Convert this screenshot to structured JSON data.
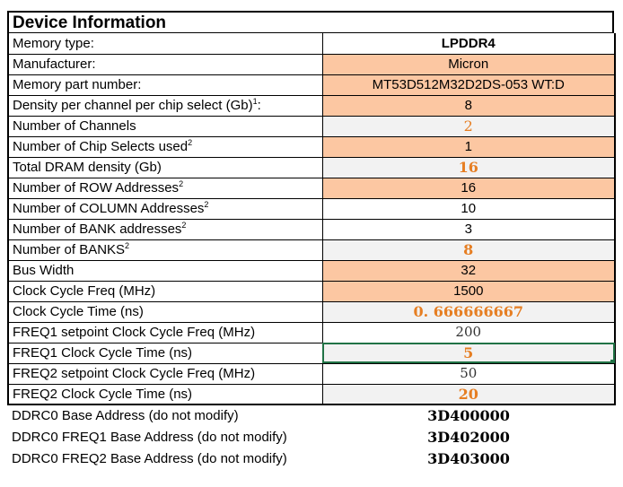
{
  "title": "Device Information",
  "rows": [
    {
      "label": "Memory type:",
      "sup": "",
      "value": "LPDDR4"
    },
    {
      "label": "Manufacturer:",
      "sup": "",
      "value": "Micron"
    },
    {
      "label": "Memory part number:",
      "sup": "",
      "value": "MT53D512M32D2DS-053 WT:D"
    },
    {
      "label": "Density per channel per chip select (Gb)",
      "sup": "1",
      "suffix": ":",
      "value": "8"
    },
    {
      "label": "Number of Channels",
      "sup": "",
      "value": "2"
    },
    {
      "label": "Number of Chip Selects used",
      "sup": "2",
      "value": "1"
    },
    {
      "label": "Total DRAM density (Gb)",
      "sup": "",
      "value": "16"
    },
    {
      "label": "Number of ROW Addresses",
      "sup": "2",
      "value": "16"
    },
    {
      "label": "Number of COLUMN Addresses",
      "sup": "2",
      "value": "10"
    },
    {
      "label": "Number of BANK addresses",
      "sup": "2",
      "value": "3"
    },
    {
      "label": "Number of BANKS",
      "sup": "2",
      "value": "8"
    },
    {
      "label": "Bus Width",
      "sup": "",
      "value": "32"
    },
    {
      "label": "Clock Cycle Freq (MHz)",
      "sup": "",
      "value": "1500"
    },
    {
      "label": "Clock Cycle Time (ns)",
      "sup": "",
      "value": "0. 666666667"
    },
    {
      "label": "FREQ1 setpoint Clock Cycle Freq (MHz)",
      "sup": "",
      "value": "200"
    },
    {
      "label": "FREQ1 Clock Cycle Time (ns)",
      "sup": "",
      "value": "5"
    },
    {
      "label": "FREQ2 setpoint Clock Cycle Freq (MHz)",
      "sup": "",
      "value": "50"
    },
    {
      "label": "FREQ2 Clock Cycle Time (ns)",
      "sup": "",
      "value": "20"
    }
  ],
  "base_addresses": [
    {
      "label": "DDRC0 Base Address (do not modify)",
      "value": "3D400000"
    },
    {
      "label": "DDRC0 FREQ1 Base Address (do not modify)",
      "value": "3D402000"
    },
    {
      "label": "DDRC0 FREQ2 Base Address (do not modify)",
      "value": "3D403000"
    }
  ],
  "colors": {
    "input_fill": "#fcc7a2",
    "calc_fill": "#f2f2f2",
    "calc_text": "#e67e22",
    "selection": "#217346"
  }
}
